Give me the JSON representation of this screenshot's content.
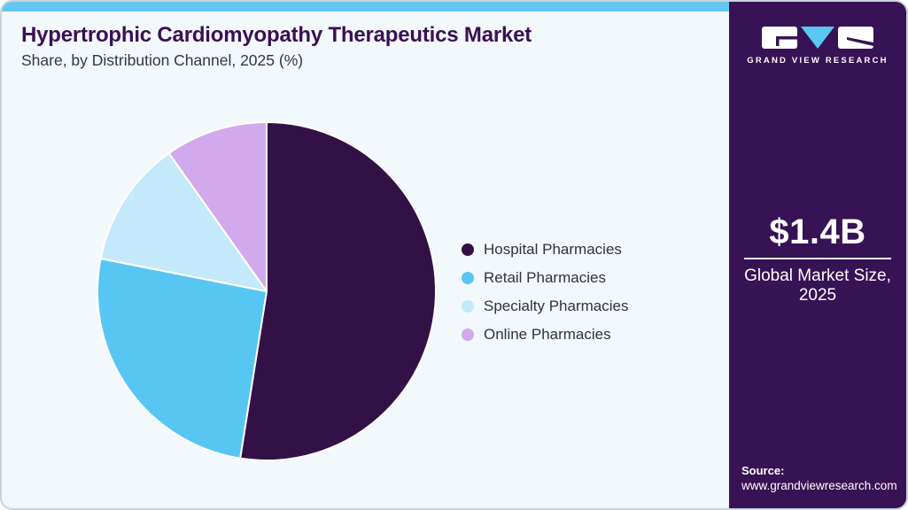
{
  "page": {
    "background": "#FFFFFF",
    "card_background": "#F2F8FC",
    "top_strip_color": "#64C6F0",
    "border_color": "#CBD3DA"
  },
  "header": {
    "title": "Hypertrophic Cardiomyopathy Therapeutics Market",
    "subtitle": "Share, by Distribution Channel, 2025 (%)",
    "title_color": "#3A1053"
  },
  "chart_data": {
    "type": "pie",
    "title": "Hypertrophic Cardiomyopathy Therapeutics Market Share, by Distribution Channel, 2025 (%)",
    "labels": [
      "Hospital Pharmacies",
      "Retail Pharmacies",
      "Specialty Pharmacies",
      "Online Pharmacies"
    ],
    "values": [
      52.5,
      25.6,
      12.1,
      9.8
    ],
    "unit": "%",
    "colors": [
      "#331147",
      "#58C6F2",
      "#C3E9FA",
      "#D2A9EC"
    ],
    "start_angle_deg": 0,
    "direction": "clockwise",
    "slice_border_color": "#FFFFFF",
    "legend_position": "right",
    "data_labels_shown": false
  },
  "sidebar": {
    "background": "#371254",
    "brand_name": "GRAND VIEW RESEARCH",
    "logo_accent": "#5BC8F4",
    "market_size": "$1.4B",
    "market_size_caption": "Global Market Size, 2025",
    "source_label": "Source:",
    "source_url": "www.grandviewresearch.com"
  }
}
